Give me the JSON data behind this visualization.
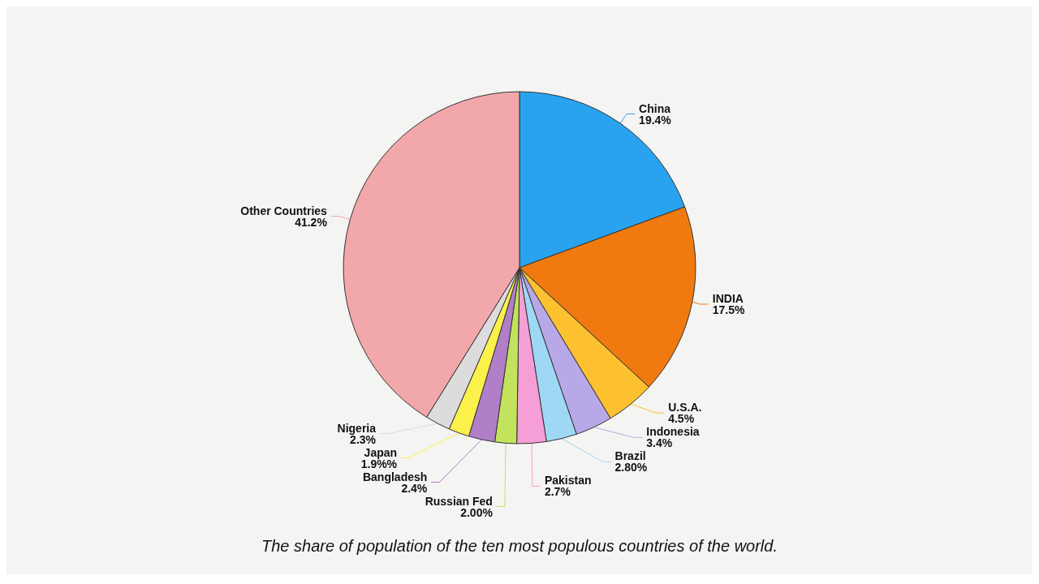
{
  "chart_data": {
    "type": "pie",
    "title": "The share of population of the ten most populous countries of the world.",
    "categories": [
      "China",
      "INDIA",
      "U.S.A.",
      "Indonesia",
      "Brazil",
      "Pakistan",
      "Russian Fed",
      "Bangladesh",
      "Japan",
      "Nigeria",
      "Other Countries"
    ],
    "values": [
      19.4,
      17.5,
      4.5,
      3.4,
      2.8,
      2.7,
      2.0,
      2.4,
      1.9,
      2.3,
      41.2
    ],
    "value_labels": [
      "19.4%",
      "17.5%",
      "4.5%",
      "3.4%",
      "2.80%",
      "2.7%",
      "2.00%",
      "2.4%",
      "1.9%%",
      "2.3%",
      "41.2%"
    ],
    "colors": [
      "#29a3f0",
      "#f07a10",
      "#fdc130",
      "#b9a8e8",
      "#9fd8f5",
      "#f59fd6",
      "#c3e35c",
      "#b07fc8",
      "#fcf04a",
      "#dcdcdc",
      "#f2a8ab"
    ],
    "legend": false
  }
}
